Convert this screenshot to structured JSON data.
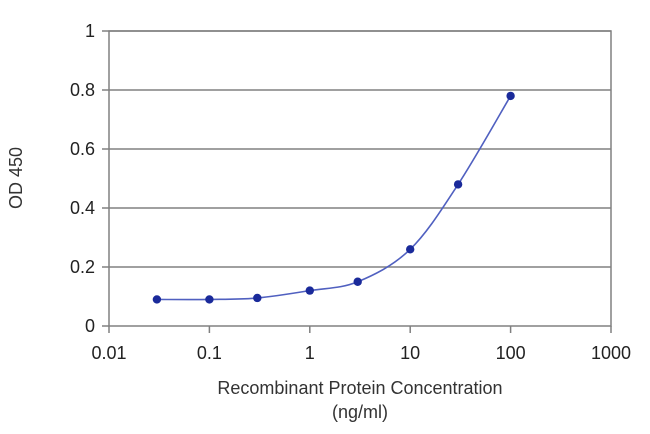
{
  "chart_data": {
    "type": "line",
    "title": "",
    "xlabel": "Recombinant Protein Concentration",
    "xlabel_unit": "(ng/ml)",
    "ylabel": "OD 450",
    "x_scale": "log",
    "xlim": [
      0.01,
      1000
    ],
    "ylim": [
      0,
      1
    ],
    "x_ticks": [
      0.01,
      0.1,
      1,
      10,
      100,
      1000
    ],
    "x_tick_labels": [
      "0.01",
      "0.1",
      "1",
      "10",
      "100",
      "1000"
    ],
    "y_ticks": [
      0,
      0.2,
      0.4,
      0.6,
      0.8,
      1
    ],
    "y_tick_labels": [
      "0",
      "0.2",
      "0.4",
      "0.6",
      "0.8",
      "1"
    ],
    "grid": "horizontal",
    "legend": "none",
    "series": [
      {
        "color": "#1a2a9a",
        "x": [
          0.03,
          0.1,
          0.3,
          1,
          3,
          10,
          30,
          100
        ],
        "y": [
          0.09,
          0.09,
          0.095,
          0.12,
          0.15,
          0.26,
          0.48,
          0.78
        ]
      }
    ]
  }
}
